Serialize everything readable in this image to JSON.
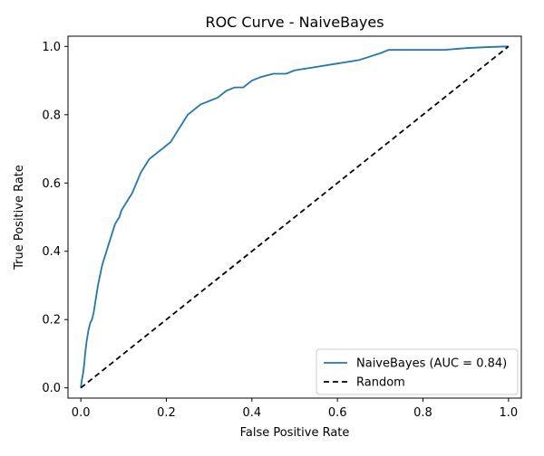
{
  "chart_data": {
    "type": "line",
    "title": "ROC Curve - NaiveBayes",
    "xlabel": "False Positive Rate",
    "ylabel": "True Positive Rate",
    "xlim": [
      -0.03,
      1.03
    ],
    "ylim": [
      -0.03,
      1.03
    ],
    "xticks": [
      0.0,
      0.2,
      0.4,
      0.6,
      0.8,
      1.0
    ],
    "yticks": [
      0.0,
      0.2,
      0.4,
      0.6,
      0.8,
      1.0
    ],
    "xtick_labels": [
      "0.0",
      "0.2",
      "0.4",
      "0.6",
      "0.8",
      "1.0"
    ],
    "ytick_labels": [
      "0.0",
      "0.2",
      "0.4",
      "0.6",
      "0.8",
      "1.0"
    ],
    "grid": false,
    "legend_position": "lower-right",
    "series": [
      {
        "name": "NaiveBayes (AUC = 0.84)",
        "color": "#1f77b4",
        "style": "solid",
        "x": [
          0.0,
          0.002,
          0.005,
          0.008,
          0.01,
          0.014,
          0.018,
          0.022,
          0.026,
          0.03,
          0.035,
          0.04,
          0.045,
          0.05,
          0.055,
          0.06,
          0.065,
          0.07,
          0.075,
          0.08,
          0.085,
          0.09,
          0.095,
          0.1,
          0.11,
          0.12,
          0.13,
          0.14,
          0.15,
          0.16,
          0.17,
          0.18,
          0.19,
          0.2,
          0.21,
          0.22,
          0.23,
          0.24,
          0.25,
          0.26,
          0.28,
          0.3,
          0.32,
          0.34,
          0.36,
          0.38,
          0.4,
          0.42,
          0.45,
          0.48,
          0.5,
          0.55,
          0.6,
          0.65,
          0.7,
          0.72,
          0.75,
          0.8,
          0.85,
          0.9,
          0.95,
          1.0
        ],
        "y": [
          0.0,
          0.02,
          0.04,
          0.07,
          0.1,
          0.14,
          0.17,
          0.19,
          0.2,
          0.22,
          0.26,
          0.3,
          0.33,
          0.36,
          0.38,
          0.4,
          0.42,
          0.44,
          0.46,
          0.48,
          0.49,
          0.5,
          0.52,
          0.53,
          0.55,
          0.57,
          0.6,
          0.63,
          0.65,
          0.67,
          0.68,
          0.69,
          0.7,
          0.71,
          0.72,
          0.74,
          0.76,
          0.78,
          0.8,
          0.81,
          0.83,
          0.84,
          0.85,
          0.87,
          0.88,
          0.88,
          0.9,
          0.91,
          0.92,
          0.92,
          0.93,
          0.94,
          0.95,
          0.96,
          0.98,
          0.99,
          0.99,
          0.99,
          0.99,
          0.995,
          0.998,
          1.0
        ]
      },
      {
        "name": "Random",
        "color": "#000000",
        "style": "dashed",
        "x": [
          0.0,
          1.0
        ],
        "y": [
          0.0,
          1.0
        ]
      }
    ]
  }
}
